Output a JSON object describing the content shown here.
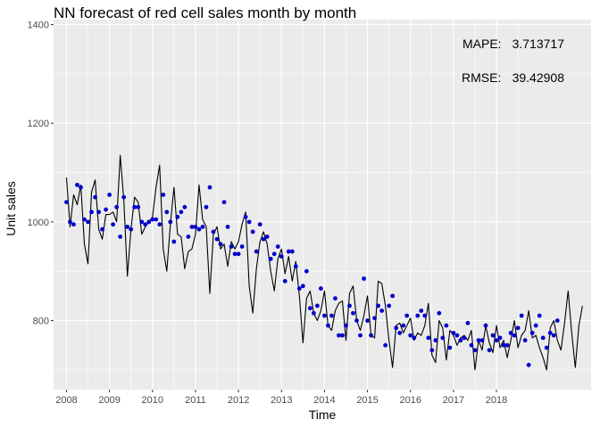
{
  "chart_data": {
    "type": "line",
    "title": "NN forecast of red cell sales month by month",
    "xlabel": "Time",
    "ylabel": "Unit sales",
    "x_ticks": [
      "2008",
      "2009",
      "2010",
      "2011",
      "2012",
      "2013",
      "2014",
      "2015",
      "2016",
      "2017",
      "2018"
    ],
    "y_ticks": [
      800,
      1000,
      1200,
      1400
    ],
    "xlim": [
      2007.7,
      2020.2
    ],
    "ylim": [
      660,
      1410
    ],
    "grid": true,
    "annotations": [
      {
        "label": "MAPE:",
        "value": "3.713717"
      },
      {
        "label": "RMSE:",
        "value": "39.42908"
      }
    ],
    "x_start": 2008.0,
    "x_step_months": 1,
    "series": [
      {
        "style": "line",
        "color": "#000000",
        "values": [
          1090,
          990,
          1055,
          1035,
          1075,
          955,
          915,
          1060,
          1085,
          985,
          965,
          1015,
          1015,
          1020,
          1000,
          1135,
          1045,
          890,
          985,
          1050,
          1040,
          975,
          990,
          1000,
          1010,
          1070,
          1115,
          945,
          900,
          995,
          1070,
          975,
          970,
          905,
          940,
          945,
          975,
          1075,
          1005,
          990,
          855,
          975,
          990,
          945,
          955,
          910,
          960,
          945,
          960,
          995,
          1020,
          870,
          815,
          905,
          960,
          980,
          955,
          900,
          860,
          925,
          945,
          895,
          930,
          880,
          920,
          850,
          755,
          845,
          860,
          815,
          800,
          820,
          860,
          790,
          780,
          820,
          835,
          840,
          760,
          855,
          870,
          800,
          780,
          810,
          850,
          770,
          765,
          880,
          875,
          830,
          760,
          705,
          790,
          795,
          775,
          790,
          805,
          760,
          775,
          770,
          790,
          835,
          730,
          715,
          800,
          785,
          720,
          780,
          770,
          750,
          765,
          770,
          760,
          780,
          700,
          760,
          740,
          790,
          755,
          735,
          790,
          745,
          760,
          725,
          760,
          800,
          745,
          770,
          780,
          820,
          765,
          770,
          745,
          725,
          700,
          785,
          800,
          760,
          740,
          795,
          860,
          775,
          705,
          790,
          830
        ],
        "comment": "actual"
      },
      {
        "style": "points",
        "color": "#0000cc",
        "values": [
          1040,
          1000,
          995,
          1075,
          1070,
          1005,
          1000,
          1020,
          1050,
          1020,
          985,
          1025,
          1055,
          995,
          1030,
          970,
          1050,
          990,
          985,
          1030,
          1030,
          1000,
          995,
          1000,
          1005,
          1005,
          995,
          1055,
          1020,
          1000,
          960,
          1010,
          1020,
          1030,
          970,
          990,
          990,
          985,
          990,
          1030,
          1070,
          980,
          965,
          955,
          1040,
          990,
          950,
          935,
          935,
          950,
          1010,
          1000,
          980,
          940,
          995,
          965,
          970,
          925,
          935,
          950,
          930,
          880,
          940,
          940,
          910,
          865,
          870,
          900,
          825,
          815,
          830,
          865,
          810,
          790,
          810,
          845,
          770,
          770,
          790,
          830,
          815,
          800,
          770,
          885,
          800,
          770,
          805,
          830,
          820,
          750,
          830,
          850,
          785,
          775,
          790,
          810,
          770,
          765,
          810,
          820,
          810,
          765,
          740,
          760,
          815,
          765,
          790,
          745,
          775,
          770,
          760,
          765,
          795,
          750,
          740,
          760,
          760,
          790,
          740,
          770,
          760,
          765,
          750,
          750,
          775,
          770,
          785,
          810,
          760,
          710,
          775,
          790,
          810,
          765,
          745,
          775,
          770,
          800
        ]
      }
    ]
  }
}
